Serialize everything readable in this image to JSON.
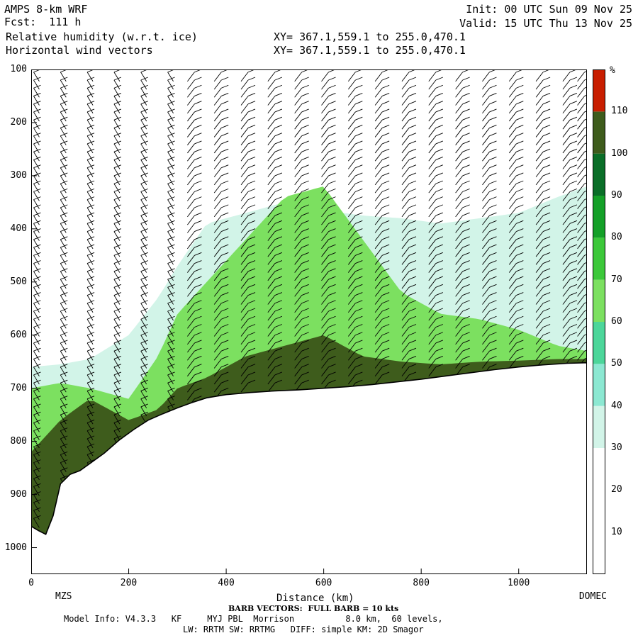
{
  "header": {
    "model": "AMPS 8-km WRF",
    "forecast": "Fcst:  111 h",
    "field1": "Relative humidity (w.r.t. ice)",
    "field2": "Horizontal wind vectors",
    "init": "Init: 00 UTC Sun 09 Nov 25",
    "valid": "Valid: 15 UTC Thu 13 Nov 25",
    "xy1": "XY= 367.1,559.1 to 255.0,470.1",
    "xy2": "XY= 367.1,559.1 to 255.0,470.1"
  },
  "chart_data": {
    "type": "heatmap",
    "xlabel": "Distance (km)",
    "ylabel": "",
    "xlim": [
      0,
      1140
    ],
    "ylim": [
      1050,
      100
    ],
    "x_ticks": [
      0,
      200,
      400,
      600,
      800,
      1000
    ],
    "y_ticks": [
      100,
      200,
      300,
      400,
      500,
      600,
      700,
      800,
      900,
      1000
    ],
    "x_end_labels": {
      "left": "MZS",
      "right": "DOMEC"
    },
    "colorbar": {
      "unit": "%",
      "levels": [
        10,
        20,
        30,
        40,
        50,
        60,
        70,
        80,
        90,
        100,
        110
      ],
      "colors": [
        "#ffffff",
        "#ffffff",
        "#ffffff",
        "#d2f4e8",
        "#8ce8d2",
        "#4cd69a",
        "#7ce060",
        "#3cc83a",
        "#14a028",
        "#0a6e28",
        "#3e5c1c",
        "#c81e00"
      ]
    },
    "terrain_surface": {
      "distance_km": [
        0,
        15,
        30,
        45,
        60,
        80,
        100,
        120,
        150,
        180,
        210,
        240,
        270,
        300,
        330,
        360,
        400,
        450,
        500,
        550,
        600,
        650,
        700,
        750,
        800,
        850,
        900,
        950,
        1000,
        1050,
        1100,
        1140
      ],
      "pressure_hpa": [
        960,
        968,
        975,
        940,
        880,
        862,
        855,
        842,
        822,
        798,
        778,
        760,
        748,
        737,
        727,
        718,
        712,
        708,
        705,
        703,
        700,
        697,
        693,
        688,
        683,
        677,
        671,
        665,
        660,
        656,
        653,
        652
      ]
    },
    "humidity_layers": [
      {
        "name": "",
        "rh_min": 30,
        "top_hpa": [
          660,
          655,
          645,
          600,
          530,
          470,
          390,
          370,
          350,
          365,
          375,
          380,
          390,
          380,
          370,
          340,
          320
        ],
        "at_km": [
          0,
          60,
          120,
          200,
          260,
          300,
          360,
          440,
          520,
          600,
          680,
          760,
          840,
          920,
          1000,
          1080,
          1140
        ]
      },
      {
        "name": "",
        "rh_min": 60,
        "top_hpa": [
          700,
          690,
          700,
          720,
          640,
          560,
          500,
          420,
          340,
          320,
          420,
          520,
          560,
          570,
          590,
          620,
          630
        ],
        "at_km": [
          0,
          60,
          120,
          200,
          260,
          300,
          360,
          440,
          520,
          600,
          680,
          760,
          840,
          920,
          1000,
          1080,
          1140
        ]
      },
      {
        "name": "",
        "rh_min": 100,
        "top_hpa": [
          820,
          760,
          720,
          760,
          740,
          700,
          680,
          640,
          620,
          600,
          640,
          650,
          655,
          650,
          648,
          645,
          645
        ],
        "at_km": [
          0,
          60,
          120,
          200,
          260,
          300,
          360,
          440,
          520,
          600,
          680,
          760,
          840,
          920,
          1000,
          1080,
          1140
        ]
      }
    ],
    "wind_columns_km": [
      5,
      60,
      115,
      170,
      225,
      280,
      335,
      390,
      445,
      500,
      555,
      610,
      665,
      720,
      775,
      830,
      885,
      940,
      995,
      1050,
      1105,
      1135
    ],
    "barb_note": "BARB VECTORS:  FULL BARB = 10 kts"
  },
  "footer": {
    "model_info": "Model Info: V4.3.3   KF     MYJ PBL  Morrison          8.0 km,  60 levels,",
    "physics": "LW: RRTM SW: RRTMG   DIFF: simple KM: 2D Smagor"
  }
}
